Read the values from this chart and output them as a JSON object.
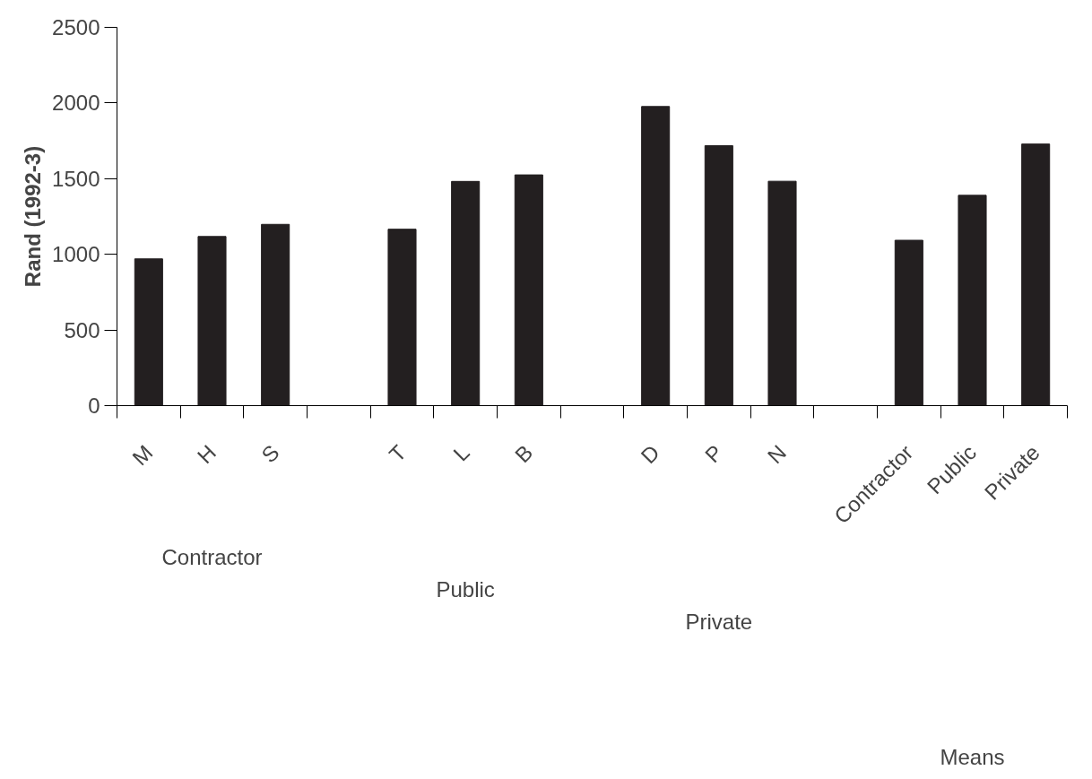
{
  "chart_data": {
    "type": "bar",
    "ylabel": "Rand (1992-3)",
    "categories": [
      "M",
      "H",
      "S",
      null,
      "T",
      "L",
      "B",
      null,
      "D",
      "P",
      "N",
      null,
      "Contractor",
      "Public",
      "Private"
    ],
    "values": [
      970,
      1118,
      1198,
      null,
      1166,
      1482,
      1525,
      null,
      1977,
      1718,
      1483,
      null,
      1093,
      1390,
      1729
    ],
    "color": "#231f20",
    "ylim": [
      0,
      2500
    ],
    "yticks": [
      0,
      500,
      1000,
      1500,
      2000,
      2500
    ],
    "grid": false,
    "annotations": [
      "Contractor",
      "Public",
      "Private",
      "Means"
    ]
  }
}
